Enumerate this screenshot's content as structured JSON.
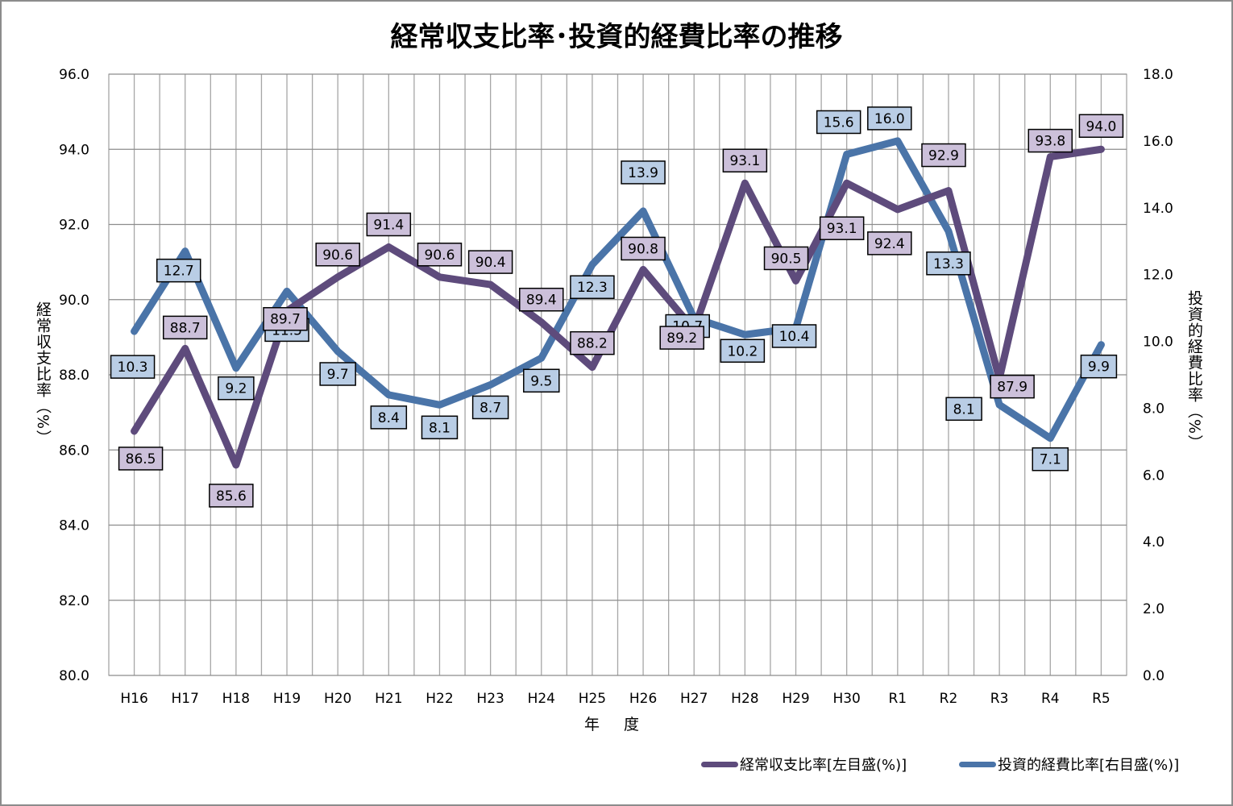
{
  "title": "経常収支比率･投資的経費比率の推移",
  "chart_data": {
    "type": "line",
    "title": "経常収支比率･投資的経費比率の推移",
    "xlabel": "年 度",
    "ylabel_left": "経常収支比率（%）",
    "ylabel_right": "投資的経費比率（%）",
    "categories": [
      "H16",
      "H17",
      "H18",
      "H19",
      "H20",
      "H21",
      "H22",
      "H23",
      "H24",
      "H25",
      "H26",
      "H27",
      "H28",
      "H29",
      "H30",
      "R1",
      "R2",
      "R3",
      "R4",
      "R5"
    ],
    "y_left": {
      "min": 80,
      "max": 96,
      "step": 2,
      "ticks": [
        "80.0",
        "82.0",
        "84.0",
        "86.0",
        "88.0",
        "90.0",
        "92.0",
        "94.0",
        "96.0"
      ]
    },
    "y_right": {
      "min": 0,
      "max": 18,
      "step": 2,
      "ticks": [
        "0.0",
        "2.0",
        "4.0",
        "6.0",
        "8.0",
        "10.0",
        "12.0",
        "14.0",
        "16.0",
        "18.0"
      ]
    },
    "grid": true,
    "legend_position": "bottom-right",
    "series": [
      {
        "name": "経常収支比率[左目盛(%)]",
        "axis": "left",
        "color": "#5e4b7c",
        "label_bg": "#ccc0da",
        "values": [
          86.5,
          88.7,
          85.6,
          89.7,
          90.6,
          91.4,
          90.6,
          90.4,
          89.4,
          88.2,
          90.8,
          89.2,
          93.1,
          90.5,
          93.1,
          92.4,
          92.9,
          87.9,
          93.8,
          94.0
        ],
        "labels": [
          "86.5",
          "88.7",
          "85.6",
          "89.7",
          "90.6",
          "91.4",
          "90.6",
          "90.4",
          "89.4",
          "88.2",
          "90.8",
          "89.2",
          "93.1",
          "90.5",
          "93.1",
          "92.4",
          "92.9",
          "87.9",
          "93.8",
          "94.0"
        ]
      },
      {
        "name": "投資的経費比率[右目盛(%)]",
        "axis": "right",
        "color": "#4a74a8",
        "label_bg": "#b9cde5",
        "values": [
          10.3,
          12.7,
          9.2,
          11.5,
          9.7,
          8.4,
          8.1,
          8.7,
          9.5,
          12.3,
          13.9,
          10.7,
          10.2,
          10.4,
          15.6,
          16.0,
          13.3,
          8.1,
          7.1,
          9.9
        ],
        "labels": [
          "10.3",
          "12.7",
          "9.2",
          "11.5",
          "9.7",
          "8.4",
          "8.1",
          "8.7",
          "9.5",
          "12.3",
          "13.9",
          "10.7",
          "10.2",
          "10.4",
          "15.6",
          "16.0",
          "13.3",
          "8.1",
          "7.1",
          "9.9"
        ]
      }
    ]
  }
}
